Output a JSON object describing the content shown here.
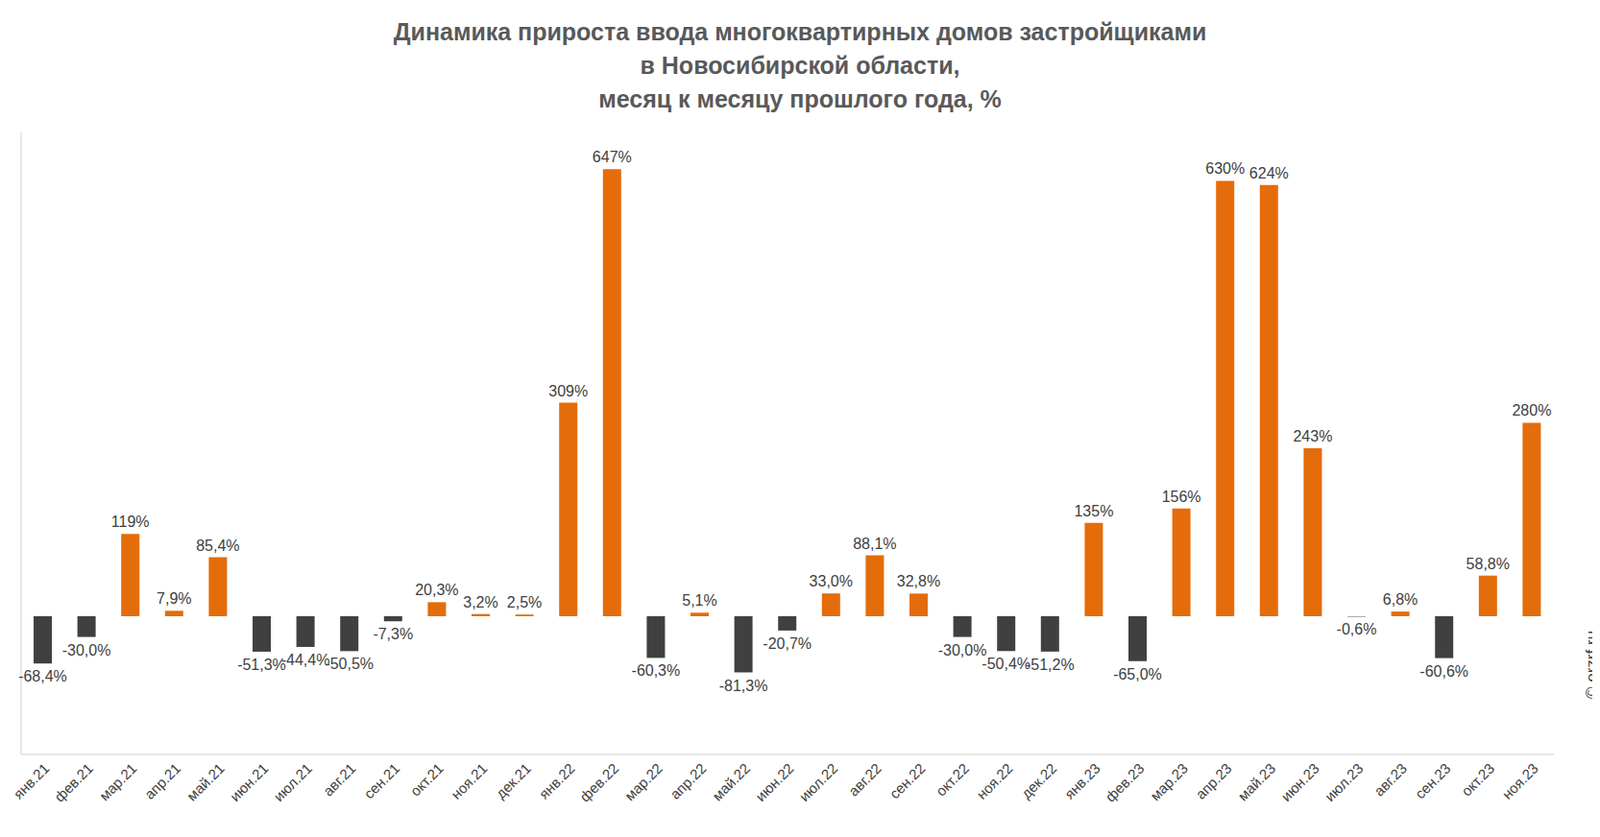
{
  "chart_data": {
    "type": "bar",
    "title": "Динамика прироста ввода многоквартирных домов застройщиками\nв Новосибирской области,\nмесяц к месяцу прошлого года, %",
    "categories": [
      "янв.21",
      "фев.21",
      "мар.21",
      "апр.21",
      "май.21",
      "июн.21",
      "июл.21",
      "авг.21",
      "сен.21",
      "окт.21",
      "ноя.21",
      "дек.21",
      "янв.22",
      "фев.22",
      "мар.22",
      "апр.22",
      "май.22",
      "июн.22",
      "июл.22",
      "авг.22",
      "сен.22",
      "окт.22",
      "ноя.22",
      "дек.22",
      "янв.23",
      "фев.23",
      "мар.23",
      "апр.23",
      "май.23",
      "июн.23",
      "июл.23",
      "авг.23",
      "сен.23",
      "окт.23",
      "ноя.23"
    ],
    "values": [
      -68.4,
      -30.0,
      119,
      7.9,
      85.4,
      -51.3,
      -44.4,
      -50.5,
      -7.3,
      20.3,
      3.2,
      2.5,
      309,
      647,
      -60.3,
      5.1,
      -81.3,
      -20.7,
      33.0,
      88.1,
      32.8,
      -30.0,
      -50.4,
      -51.2,
      135,
      -65.0,
      156,
      630,
      624,
      243,
      -0.6,
      6.8,
      -60.6,
      58.8,
      280
    ],
    "value_labels": [
      "-68,4%",
      "-30,0%",
      "119%",
      "7,9%",
      "85,4%",
      "-51,3%",
      "-44,4%",
      "-50,5%",
      "-7,3%",
      "20,3%",
      "3,2%",
      "2,5%",
      "309%",
      "647%",
      "-60,3%",
      "5,1%",
      "-81,3%",
      "-20,7%",
      "33,0%",
      "88,1%",
      "32,8%",
      "-30,0%",
      "-50,4%",
      "-51,2%",
      "135%",
      "-65,0%",
      "156%",
      "630%",
      "624%",
      "243%",
      "-0,6%",
      "6,8%",
      "-60,6%",
      "58,8%",
      "280%"
    ],
    "colors": [
      "#404040",
      "#404040",
      "#e46c0a",
      "#e46c0a",
      "#e46c0a",
      "#404040",
      "#404040",
      "#404040",
      "#404040",
      "#e46c0a",
      "#e46c0a",
      "#e46c0a",
      "#e46c0a",
      "#e46c0a",
      "#404040",
      "#e46c0a",
      "#404040",
      "#404040",
      "#e46c0a",
      "#e46c0a",
      "#e46c0a",
      "#404040",
      "#404040",
      "#404040",
      "#e46c0a",
      "#404040",
      "#e46c0a",
      "#e46c0a",
      "#e46c0a",
      "#e46c0a",
      "#404040",
      "#e46c0a",
      "#404040",
      "#e46c0a",
      "#e46c0a"
    ],
    "ylim": [
      -200,
      700
    ],
    "data_labels": true,
    "tick_labels": "x",
    "grid": false,
    "annotations": [
      "© erzrf.ru"
    ]
  }
}
